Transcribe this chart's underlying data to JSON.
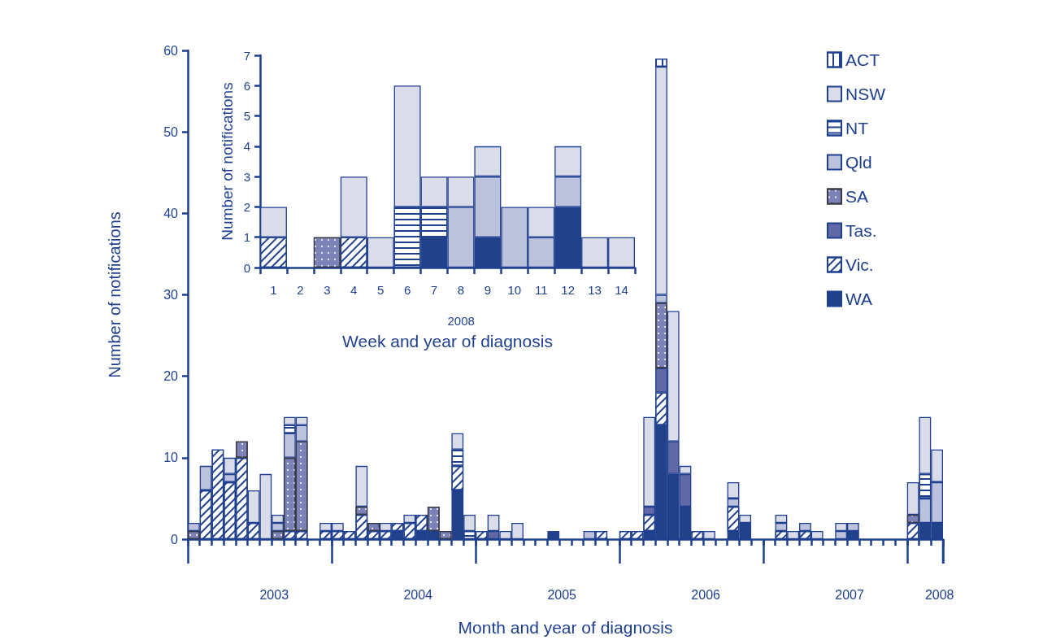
{
  "chart_data": [
    {
      "type": "bar",
      "stacked": true,
      "xlabel": "Month and year of diagnosis",
      "ylabel": "Number of notifications",
      "categories": [
        null,
        null,
        null,
        null,
        null,
        null,
        null,
        null,
        null,
        null,
        null,
        null,
        null,
        null,
        null,
        null,
        null,
        null,
        null,
        null,
        null,
        null,
        null,
        null,
        null,
        null,
        null,
        null,
        null,
        null,
        null,
        null,
        null,
        null,
        null,
        null,
        null,
        null,
        null,
        null,
        null,
        null,
        null,
        null,
        null,
        null,
        null,
        null,
        null,
        null,
        null,
        null,
        null,
        null,
        null,
        null,
        null,
        null,
        null,
        null,
        null,
        null,
        null
      ],
      "ylim": [
        0,
        60
      ],
      "yticks": [
        0,
        10,
        20,
        30,
        40,
        50,
        60
      ],
      "grid": false,
      "legend": "top right",
      "tick_labels": "y",
      "annotations": [
        "2003",
        "2004",
        "2005",
        "2006",
        "2007",
        "2008"
      ],
      "series": [
        {
          "name": "WA",
          "color": "#21418a",
          "values": [
            0,
            0,
            0,
            0,
            0,
            0,
            0,
            0,
            0,
            0,
            0,
            0,
            0,
            0,
            0,
            0,
            0,
            1,
            0,
            1,
            1,
            0,
            6,
            0,
            0,
            0,
            0,
            0,
            0,
            0,
            1,
            0,
            0,
            0,
            0,
            0,
            0,
            0,
            1,
            14,
            8,
            4,
            0,
            0,
            0,
            1,
            2,
            0,
            0,
            0,
            0,
            0,
            0,
            0,
            0,
            1,
            0,
            0,
            0,
            0,
            0,
            2,
            2
          ]
        },
        {
          "name": "Vic.",
          "color": "#ffffff",
          "values": [
            0,
            6,
            11,
            7,
            10,
            2,
            0,
            0,
            1,
            1,
            0,
            1,
            1,
            1,
            3,
            1,
            1,
            1,
            2,
            2,
            0,
            0,
            3,
            0,
            1,
            0,
            0,
            0,
            0,
            0,
            0,
            0,
            0,
            0,
            1,
            0,
            1,
            1,
            2,
            4,
            0,
            0,
            1,
            0,
            0,
            3,
            0,
            0,
            0,
            1,
            0,
            1,
            0,
            0,
            0,
            0,
            0,
            0,
            0,
            0,
            2,
            0,
            0
          ]
        },
        {
          "name": "Tas.",
          "color": "#6169a6",
          "values": [
            0,
            0,
            0,
            0,
            0,
            0,
            0,
            0,
            0,
            0,
            0,
            0,
            0,
            0,
            0,
            0,
            0,
            0,
            0,
            0,
            0,
            0,
            0,
            0,
            0,
            1,
            0,
            0,
            0,
            0,
            0,
            0,
            0,
            0,
            0,
            0,
            0,
            0,
            1,
            3,
            4,
            4,
            0,
            0,
            0,
            0,
            0,
            0,
            0,
            0,
            0,
            0,
            0,
            0,
            0,
            0,
            0,
            0,
            0,
            0,
            0,
            0,
            0
          ]
        },
        {
          "name": "SA",
          "color": "#7a82b8",
          "values": [
            1,
            0,
            0,
            0,
            2,
            0,
            0,
            1,
            9,
            11,
            0,
            0,
            0,
            0,
            1,
            1,
            0,
            0,
            0,
            0,
            3,
            1,
            0,
            0,
            0,
            0,
            0,
            0,
            0,
            0,
            0,
            0,
            0,
            0,
            0,
            0,
            0,
            0,
            0,
            8,
            0,
            0,
            0,
            0,
            0,
            0,
            0,
            0,
            0,
            0,
            0,
            0,
            0,
            0,
            0,
            0,
            0,
            0,
            0,
            0,
            1,
            0,
            0
          ]
        },
        {
          "name": "Qld",
          "color": "#bcc1dc",
          "values": [
            1,
            3,
            0,
            1,
            0,
            0,
            0,
            1,
            3,
            2,
            0,
            0,
            0,
            0,
            0,
            0,
            0,
            0,
            0,
            0,
            0,
            0,
            0,
            0,
            0,
            0,
            0,
            0,
            0,
            0,
            0,
            0,
            0,
            1,
            0,
            0,
            0,
            0,
            0,
            1,
            0,
            0,
            0,
            0,
            0,
            1,
            0,
            0,
            0,
            1,
            0,
            1,
            0,
            0,
            1,
            1,
            0,
            0,
            0,
            0,
            0,
            3,
            5
          ]
        },
        {
          "name": "NT",
          "color": "#ffffff",
          "values": [
            0,
            0,
            0,
            0,
            0,
            0,
            0,
            0,
            1,
            0,
            0,
            0,
            0,
            0,
            0,
            0,
            0,
            0,
            0,
            0,
            0,
            0,
            2,
            1,
            0,
            0,
            0,
            0,
            0,
            0,
            0,
            0,
            0,
            0,
            0,
            0,
            0,
            0,
            0,
            0,
            0,
            0,
            0,
            0,
            0,
            0,
            0,
            0,
            0,
            0,
            0,
            0,
            0,
            0,
            0,
            0,
            0,
            0,
            0,
            0,
            0,
            3,
            0
          ]
        },
        {
          "name": "NSW",
          "color": "#dadcea",
          "values": [
            0,
            0,
            0,
            2,
            0,
            4,
            8,
            1,
            1,
            1,
            0,
            1,
            1,
            0,
            5,
            0,
            1,
            0,
            1,
            0,
            0,
            0,
            2,
            2,
            0,
            2,
            1,
            2,
            0,
            0,
            0,
            0,
            0,
            0,
            0,
            0,
            0,
            0,
            11,
            28,
            16,
            1,
            0,
            1,
            0,
            2,
            1,
            0,
            0,
            1,
            1,
            0,
            1,
            0,
            1,
            0,
            0,
            0,
            0,
            0,
            4,
            7,
            4
          ]
        },
        {
          "name": "ACT",
          "color": "#ffffff",
          "values": [
            0,
            0,
            0,
            0,
            0,
            0,
            0,
            0,
            0,
            0,
            0,
            0,
            0,
            0,
            0,
            0,
            0,
            0,
            0,
            0,
            0,
            0,
            0,
            0,
            0,
            0,
            0,
            0,
            0,
            0,
            0,
            0,
            0,
            0,
            0,
            0,
            0,
            0,
            0,
            1,
            0,
            0,
            0,
            0,
            0,
            0,
            0,
            0,
            0,
            0,
            0,
            0,
            0,
            0,
            0,
            0,
            0,
            0,
            0,
            0,
            0,
            0,
            0
          ]
        }
      ]
    },
    {
      "type": "bar",
      "stacked": true,
      "xlabel": "Week and year of diagnosis",
      "ylabel": "Number of notifications",
      "categories": [
        "1",
        "2",
        "3",
        "4",
        "5",
        "6",
        "7",
        "8",
        "9",
        "10",
        "11",
        "12",
        "13",
        "14"
      ],
      "ylim": [
        0,
        7
      ],
      "yticks": [
        0,
        1,
        2,
        3,
        4,
        5,
        6,
        7
      ],
      "grid": false,
      "annotations": [
        "2008"
      ],
      "series": [
        {
          "color": "#21418a",
          "values": [
            0,
            0,
            0,
            0,
            0,
            0,
            1,
            0,
            1,
            0,
            0,
            2,
            0,
            0
          ]
        },
        {
          "color": "#ffffff",
          "values": [
            1,
            0,
            0,
            1,
            0,
            0,
            0,
            0,
            0,
            0,
            0,
            0,
            0,
            0
          ]
        },
        {
          "color": "#6169a6",
          "values": [
            0,
            0,
            0,
            0,
            0,
            0,
            0,
            0,
            0,
            0,
            0,
            0,
            0,
            0
          ]
        },
        {
          "color": "#7a82b8",
          "values": [
            0,
            0,
            1,
            0,
            0,
            0,
            0,
            0,
            0,
            0,
            0,
            0,
            0,
            0
          ]
        },
        {
          "color": "#bcc1dc",
          "values": [
            0,
            0,
            0,
            0,
            0,
            0,
            0,
            2,
            2,
            2,
            1,
            1,
            0,
            0
          ]
        },
        {
          "color": "#ffffff",
          "values": [
            0,
            0,
            0,
            0,
            0,
            2,
            1,
            0,
            0,
            0,
            0,
            0,
            0,
            0
          ]
        },
        {
          "color": "#dadcea",
          "values": [
            1,
            0,
            0,
            2,
            1,
            4,
            1,
            1,
            1,
            0,
            1,
            1,
            1,
            1
          ]
        },
        {
          "color": "#ffffff",
          "values": [
            0,
            0,
            0,
            0,
            0,
            0,
            0,
            0,
            0,
            0,
            0,
            0,
            0,
            0
          ]
        }
      ]
    }
  ]
}
